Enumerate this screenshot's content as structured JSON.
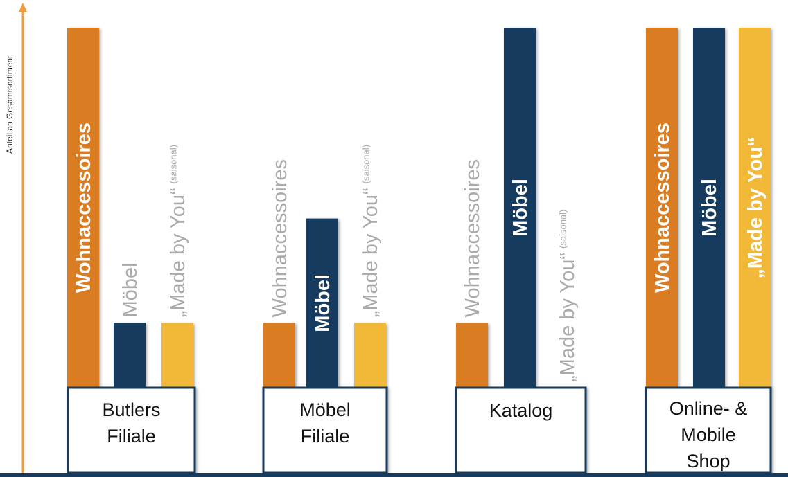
{
  "chart_data": {
    "type": "bar",
    "ylabel": "Anteil an Gesamtsortiment",
    "ylim": [
      0,
      100
    ],
    "grid": false,
    "legend": "none",
    "colors": {
      "Wohnaccessoires": "#D97B20",
      "Möbel": "#173A5E",
      "Made by You": "#F2B938",
      "label_dim": "#AAAAAA",
      "axis": "#F39A3B",
      "baseline": "#173A5E",
      "box_border": "#173A5E"
    },
    "categories": [
      "Butlers Filiale",
      "Möbel Filiale",
      "Katalog",
      "Online- & Mobile Shop"
    ],
    "category_labels": [
      [
        "Butlers",
        "Filiale"
      ],
      [
        "Möbel",
        "Filiale"
      ],
      [
        "Katalog"
      ],
      [
        "Online- &",
        "Mobile",
        "Shop"
      ]
    ],
    "series": [
      {
        "name": "Wohnaccessoires",
        "values": [
          100,
          18,
          18,
          100
        ],
        "bar_labels": [
          {
            "text": "Wohnaccessoires",
            "style": "on-bar"
          },
          {
            "text": "Wohnaccessoires",
            "style": "dim"
          },
          {
            "text": "Wohnaccessoires",
            "style": "dim"
          },
          {
            "text": "Wohnaccessoires",
            "style": "on-bar"
          }
        ]
      },
      {
        "name": "Möbel",
        "values": [
          18,
          47,
          100,
          100
        ],
        "bar_labels": [
          {
            "text": "Möbel",
            "style": "dim"
          },
          {
            "text": "Möbel",
            "style": "on-bar"
          },
          {
            "text": "Möbel",
            "style": "on-bar"
          },
          {
            "text": "Möbel",
            "style": "on-bar"
          }
        ]
      },
      {
        "name": "Made by You",
        "values": [
          18,
          18,
          0,
          100
        ],
        "bar_labels": [
          {
            "text": "„Made by You“",
            "suffix": "(saisonal)",
            "style": "dim"
          },
          {
            "text": "„Made by You“",
            "suffix": "(saisonal)",
            "style": "dim"
          },
          {
            "text": "„Made by You“",
            "suffix": "(saisonal)",
            "style": "dim"
          },
          {
            "text": "„Made by You“",
            "style": "on-bar"
          }
        ]
      }
    ]
  }
}
